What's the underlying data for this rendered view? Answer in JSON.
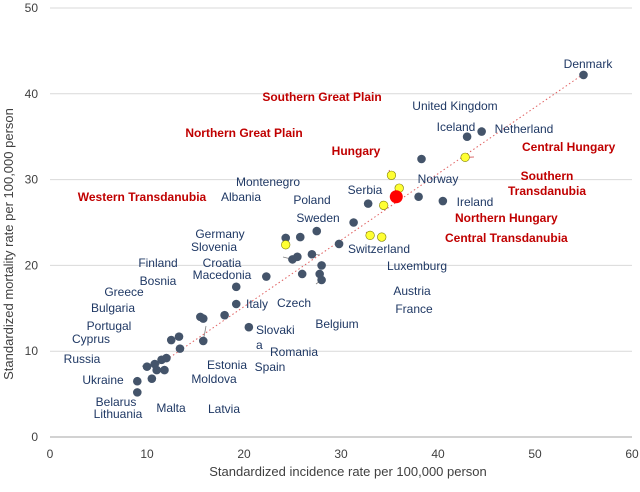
{
  "chart_data": {
    "type": "scatter",
    "xlabel": "Standardized incidence rate per 100,000 person",
    "ylabel": "Standardized mortality rate per 100,000 person",
    "xlim": [
      0,
      60
    ],
    "ylim": [
      0,
      50
    ],
    "xticks": [
      0,
      10,
      20,
      30,
      40,
      50,
      60
    ],
    "yticks": [
      0,
      10,
      20,
      30,
      40,
      50
    ],
    "grid": "horizontal",
    "trendline": {
      "style": "dotted",
      "color": "#e06060",
      "from": [
        12,
        9
      ],
      "to": [
        55,
        42.3
      ]
    },
    "colors": {
      "country": "#44546a",
      "region": "#ffff33",
      "highlight": "#ff0000",
      "region_label": "#c00000",
      "country_label": "#1f3864"
    },
    "points": [
      {
        "name": "Denmark",
        "x": 55.0,
        "y": 42.2,
        "group": "country"
      },
      {
        "name": "United Kingdom",
        "x": 38.3,
        "y": 32.4,
        "group": "country"
      },
      {
        "name": "Iceland",
        "x": 43.0,
        "y": 35.0,
        "group": "country"
      },
      {
        "name": "Netherland",
        "x": 44.5,
        "y": 35.6,
        "group": "country"
      },
      {
        "name": "Norway",
        "x": 38.0,
        "y": 28.0,
        "group": "country"
      },
      {
        "name": "Ireland",
        "x": 40.5,
        "y": 27.5,
        "group": "country"
      },
      {
        "name": "Serbia",
        "x": 32.8,
        "y": 27.2,
        "group": "country"
      },
      {
        "name": "Montenegro",
        "x": 25.8,
        "y": 23.3,
        "group": "country"
      },
      {
        "name": "Albania",
        "x": 24.3,
        "y": 23.2,
        "group": "country"
      },
      {
        "name": "Poland",
        "x": 27.5,
        "y": 24.0,
        "group": "country"
      },
      {
        "name": "Sweden",
        "x": 31.3,
        "y": 25.0,
        "group": "country"
      },
      {
        "name": "Switzerland",
        "x": 29.8,
        "y": 22.5,
        "group": "country"
      },
      {
        "name": "Luxemburg",
        "x": 27.0,
        "y": 21.3,
        "group": "country"
      },
      {
        "name": "Germany",
        "x": 25.0,
        "y": 20.7,
        "group": "country"
      },
      {
        "name": "Slovenia",
        "x": 25.5,
        "y": 21.0,
        "group": "country"
      },
      {
        "name": "Croatia",
        "x": 22.3,
        "y": 18.7,
        "group": "country"
      },
      {
        "name": "Macedonia",
        "x": 19.2,
        "y": 17.5,
        "group": "country"
      },
      {
        "name": "Austria",
        "x": 28.0,
        "y": 20.0,
        "group": "country"
      },
      {
        "name": "Czech",
        "x": 26.0,
        "y": 19.0,
        "group": "country"
      },
      {
        "name": "France",
        "x": 27.8,
        "y": 19.0,
        "group": "country"
      },
      {
        "name": "Belgium",
        "x": 28.0,
        "y": 18.3,
        "group": "country"
      },
      {
        "name": "Italy",
        "x": 19.2,
        "y": 15.5,
        "group": "country"
      },
      {
        "name": "Finland",
        "x": 18.0,
        "y": 14.2,
        "group": "country"
      },
      {
        "name": "Bosnia",
        "x": 15.8,
        "y": 13.8,
        "group": "country"
      },
      {
        "name": "Slovakia",
        "x": 20.5,
        "y": 12.8,
        "group": "country"
      },
      {
        "name": "Greece",
        "x": 15.5,
        "y": 14.0,
        "group": "country"
      },
      {
        "name": "Romania",
        "x": 15.8,
        "y": 11.2,
        "group": "country"
      },
      {
        "name": "Bulgaria",
        "x": 12.5,
        "y": 11.3,
        "group": "country"
      },
      {
        "name": "Portugal",
        "x": 13.3,
        "y": 11.7,
        "group": "country"
      },
      {
        "name": "Spain",
        "x": 13.4,
        "y": 10.3,
        "group": "country"
      },
      {
        "name": "Cyprus",
        "x": 12.0,
        "y": 9.2,
        "group": "country"
      },
      {
        "name": "Estonia",
        "x": 11.5,
        "y": 9.0,
        "group": "country"
      },
      {
        "name": "Russia",
        "x": 10.0,
        "y": 8.2,
        "group": "country"
      },
      {
        "name": "Moldova",
        "x": 10.8,
        "y": 8.5,
        "group": "country"
      },
      {
        "name": "Latvia",
        "x": 11.8,
        "y": 7.8,
        "group": "country"
      },
      {
        "name": "Ukraine",
        "x": 9.0,
        "y": 6.5,
        "group": "country"
      },
      {
        "name": "Malta",
        "x": 10.5,
        "y": 6.8,
        "group": "country"
      },
      {
        "name": "Belarus",
        "x": 11.0,
        "y": 7.8,
        "group": "country"
      },
      {
        "name": "Lithuania",
        "x": 9.0,
        "y": 5.2,
        "group": "country"
      },
      {
        "name": "Southern Great Plain",
        "x": 35.2,
        "y": 30.5,
        "group": "region"
      },
      {
        "name": "Central Hungary",
        "x": 42.8,
        "y": 32.6,
        "group": "region"
      },
      {
        "name": "Southern Transdanubia",
        "x": 36.0,
        "y": 29.0,
        "group": "region"
      },
      {
        "name": "Northern Great Plain",
        "x": 33.0,
        "y": 23.5,
        "group": "region"
      },
      {
        "name": "Northern Hungary",
        "x": 34.4,
        "y": 27.0,
        "group": "region"
      },
      {
        "name": "Central Transdanubia",
        "x": 34.2,
        "y": 23.3,
        "group": "region"
      },
      {
        "name": "Western Transdanubia",
        "x": 24.3,
        "y": 22.4,
        "group": "region"
      },
      {
        "name": "Hungary",
        "x": 35.7,
        "y": 28.0,
        "group": "highlight"
      }
    ],
    "labels": [
      {
        "text": "Denmark",
        "point": "Denmark",
        "group": "country",
        "line": false,
        "lines": [
          "Denmark"
        ]
      },
      {
        "text": "United Kingdom",
        "point": "United Kingdom",
        "group": "country",
        "line": true,
        "lines": [
          "United Kingdom"
        ]
      },
      {
        "text": "Iceland",
        "point": "Iceland",
        "group": "country",
        "line": false,
        "lines": [
          "Iceland"
        ]
      },
      {
        "text": "Netherland",
        "point": "Netherland",
        "group": "country",
        "line": false,
        "lines": [
          "Netherland"
        ]
      },
      {
        "text": "Norway",
        "point": "Norway",
        "group": "country",
        "line": false,
        "lines": [
          "Norway"
        ]
      },
      {
        "text": "Ireland",
        "point": "Ireland",
        "group": "country",
        "line": false,
        "lines": [
          "Ireland"
        ]
      },
      {
        "text": "Serbia",
        "point": "Serbia",
        "group": "country",
        "line": false,
        "lines": [
          "Serbia"
        ]
      },
      {
        "text": "Montenegro",
        "point": "Montenegro",
        "group": "country",
        "line": true,
        "lines": [
          "Montenegro"
        ]
      },
      {
        "text": "Albania",
        "point": "Albania",
        "group": "country",
        "line": true,
        "lines": [
          "Albania"
        ]
      },
      {
        "text": "Poland",
        "point": "Poland",
        "group": "country",
        "line": false,
        "lines": [
          "Poland"
        ]
      },
      {
        "text": "Sweden",
        "point": "Sweden",
        "group": "country",
        "line": true,
        "lines": [
          "Sweden"
        ]
      },
      {
        "text": "Switzerland",
        "point": "Switzerland",
        "group": "country",
        "line": false,
        "lines": [
          "Switzerland"
        ]
      },
      {
        "text": "Luxemburg",
        "point": "Luxemburg",
        "group": "country",
        "line": true,
        "lines": [
          "Luxemburg"
        ]
      },
      {
        "text": "Germany",
        "point": "Germany",
        "group": "country",
        "line": true,
        "lines": [
          "Germany"
        ]
      },
      {
        "text": "Slovenia",
        "point": "Slovenia",
        "group": "country",
        "line": true,
        "lines": [
          "Slovenia"
        ]
      },
      {
        "text": "Croatia",
        "point": "Croatia",
        "group": "country",
        "line": true,
        "lines": [
          "Croatia"
        ]
      },
      {
        "text": "Macedonia",
        "point": "Macedonia",
        "group": "country",
        "line": true,
        "lines": [
          "Macedonia"
        ]
      },
      {
        "text": "Austria",
        "point": "Austria",
        "group": "country",
        "line": true,
        "lines": [
          "Austria"
        ]
      },
      {
        "text": "Czech",
        "point": "Czech",
        "group": "country",
        "line": true,
        "lines": [
          "Czech"
        ]
      },
      {
        "text": "France",
        "point": "France",
        "group": "country",
        "line": true,
        "lines": [
          "France"
        ]
      },
      {
        "text": "Belgium",
        "point": "Belgium",
        "group": "country",
        "line": true,
        "lines": [
          "Belgium"
        ]
      },
      {
        "text": "Italy",
        "point": "Italy",
        "group": "country",
        "line": false,
        "lines": [
          "Italy"
        ]
      },
      {
        "text": "Finland",
        "point": "Finland",
        "group": "country",
        "line": true,
        "lines": [
          "Finland"
        ]
      },
      {
        "text": "Bosnia",
        "point": "Bosnia",
        "group": "country",
        "line": true,
        "lines": [
          "Bosnia"
        ]
      },
      {
        "text": "Slovakia",
        "point": "Slovakia",
        "group": "country",
        "line": false,
        "lines": [
          "Slovaki",
          "a"
        ]
      },
      {
        "text": "Greece",
        "point": "Greece",
        "group": "country",
        "line": true,
        "lines": [
          "Greece"
        ]
      },
      {
        "text": "Romania",
        "point": "Romania",
        "group": "country",
        "line": true,
        "lines": [
          "Romania"
        ]
      },
      {
        "text": "Bulgaria",
        "point": "Bulgaria",
        "group": "country",
        "line": true,
        "lines": [
          "Bulgaria"
        ]
      },
      {
        "text": "Portugal",
        "point": "Portugal",
        "group": "country",
        "line": true,
        "lines": [
          "Portugal"
        ]
      },
      {
        "text": "Spain",
        "point": "Spain",
        "group": "country",
        "line": true,
        "lines": [
          "Spain"
        ]
      },
      {
        "text": "Cyprus",
        "point": "Cyprus",
        "group": "country",
        "line": true,
        "lines": [
          "Cyprus"
        ]
      },
      {
        "text": "Estonia",
        "point": "Estonia",
        "group": "country",
        "line": true,
        "lines": [
          "Estonia"
        ]
      },
      {
        "text": "Russia",
        "point": "Russia",
        "group": "country",
        "line": true,
        "lines": [
          "Russia"
        ]
      },
      {
        "text": "Moldova",
        "point": "Moldova",
        "group": "country",
        "line": true,
        "lines": [
          "Moldova"
        ]
      },
      {
        "text": "Latvia",
        "point": "Latvia",
        "group": "country",
        "line": true,
        "lines": [
          "Latvia"
        ]
      },
      {
        "text": "Ukraine",
        "point": "Ukraine",
        "group": "country",
        "line": false,
        "lines": [
          "Ukraine"
        ]
      },
      {
        "text": "Malta",
        "point": "Malta",
        "group": "country",
        "line": true,
        "lines": [
          "Malta"
        ]
      },
      {
        "text": "Belarus",
        "point": "Belarus",
        "group": "country",
        "line": false,
        "lines": [
          "Belarus"
        ]
      },
      {
        "text": "Lithuania",
        "point": "Lithuania",
        "group": "country",
        "line": false,
        "lines": [
          "Lithuania"
        ]
      },
      {
        "text": "Southern Great Plain",
        "point": "Southern Great Plain",
        "group": "region",
        "line": true,
        "lines": [
          "Southern Great Plain"
        ]
      },
      {
        "text": "Northern Great Plain",
        "point": "Northern Great Plain",
        "group": "region",
        "line": true,
        "lines": [
          "Northern Great Plain"
        ]
      },
      {
        "text": "Hungary",
        "point": "Hungary",
        "group": "region",
        "line": true,
        "lines": [
          "Hungary"
        ]
      },
      {
        "text": "Central Hungary",
        "point": "Central Hungary",
        "group": "region",
        "line": true,
        "lines": [
          "Central Hungary"
        ]
      },
      {
        "text": "Southern Transdanubia",
        "point": "Southern Transdanubia",
        "group": "region",
        "line": true,
        "lines": [
          "Southern",
          "Transdanubia"
        ]
      },
      {
        "text": "Western Transdanubia",
        "point": "Western Transdanubia",
        "group": "region",
        "line": true,
        "lines": [
          "Western Transdanubia"
        ]
      },
      {
        "text": "Northern Hungary",
        "point": "Northern Hungary",
        "group": "region",
        "line": true,
        "lines": [
          "Northern Hungary"
        ]
      },
      {
        "text": "Central Transdanubia",
        "point": "Central Transdanubia",
        "group": "region",
        "line": true,
        "lines": [
          "Central Transdanubia"
        ]
      }
    ]
  }
}
